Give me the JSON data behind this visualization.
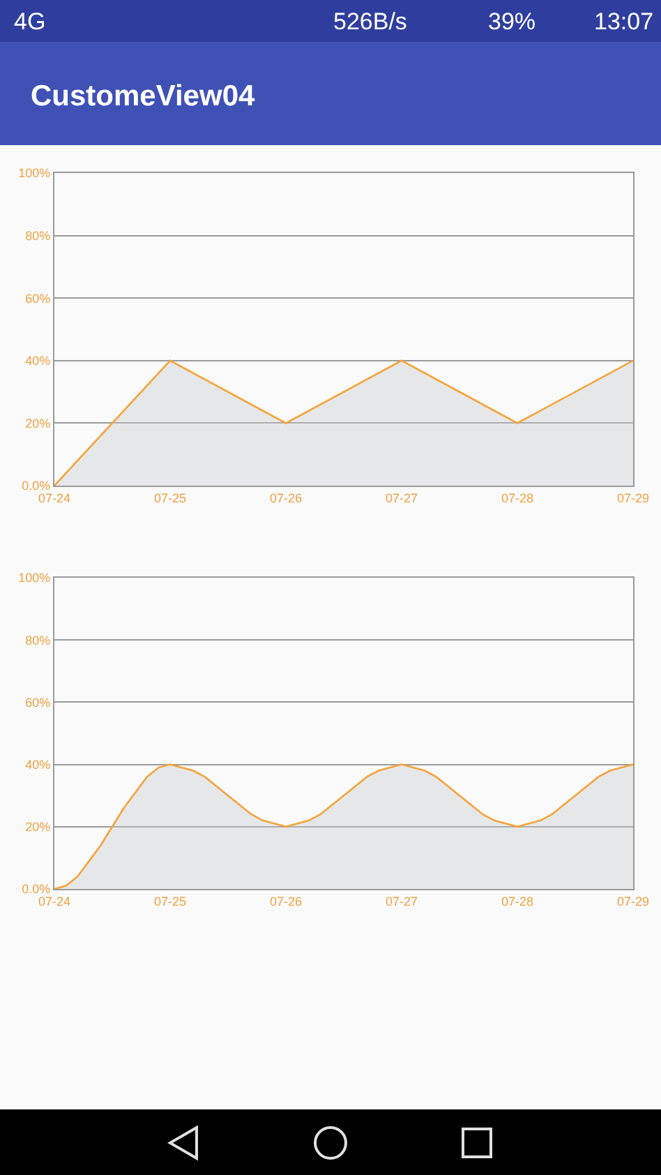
{
  "chart_data": [
    {
      "type": "area",
      "title": "CustomeView04",
      "annotations": [
        "4G",
        "526B/s",
        "39%",
        "13:07"
      ],
      "categories": [
        "07-24",
        "07-25",
        "07-26",
        "07-27",
        "07-28",
        "07-29"
      ],
      "values": [
        0,
        40,
        20,
        40,
        20,
        40
      ],
      "color": "#f5a33a",
      "ylim": [
        0,
        100
      ],
      "yticks": [
        {
          "value": 0,
          "label": "0.0%"
        },
        {
          "value": 20,
          "label": "20%"
        },
        {
          "value": 40,
          "label": "40%"
        },
        {
          "value": 60,
          "label": "60%"
        },
        {
          "value": 80,
          "label": "80%"
        },
        {
          "value": 100,
          "label": "100%"
        }
      ],
      "grid": "y"
    },
    {
      "type": "area",
      "categories": [
        "07-24",
        null,
        null,
        null,
        null,
        null,
        null,
        null,
        null,
        null,
        "07-25",
        null,
        null,
        null,
        null,
        null,
        null,
        null,
        null,
        null,
        "07-26",
        null,
        null,
        null,
        null,
        null,
        null,
        null,
        null,
        null,
        "07-27",
        null,
        null,
        null,
        null,
        null,
        null,
        null,
        null,
        null,
        "07-28",
        null,
        null,
        null,
        null,
        null,
        null,
        null,
        null,
        null,
        "07-29"
      ],
      "values": [
        0,
        1,
        4,
        9,
        14,
        20,
        26,
        31,
        36,
        39,
        40,
        39,
        38,
        36,
        33,
        30,
        27,
        24,
        22,
        21,
        20,
        21,
        22,
        24,
        27,
        30,
        33,
        36,
        38,
        39,
        40,
        39,
        38,
        36,
        33,
        30,
        27,
        24,
        22,
        21,
        20,
        21,
        22,
        24,
        27,
        30,
        33,
        36,
        38,
        39,
        40
      ],
      "color": "#f5a33a",
      "ylim": [
        0,
        100
      ],
      "yticks": [
        {
          "value": 0,
          "label": "0.0%"
        },
        {
          "value": 20,
          "label": "20%"
        },
        {
          "value": 40,
          "label": "40%"
        },
        {
          "value": 60,
          "label": "60%"
        },
        {
          "value": 80,
          "label": "80%"
        },
        {
          "value": 100,
          "label": "100%"
        }
      ],
      "grid": "y"
    }
  ]
}
